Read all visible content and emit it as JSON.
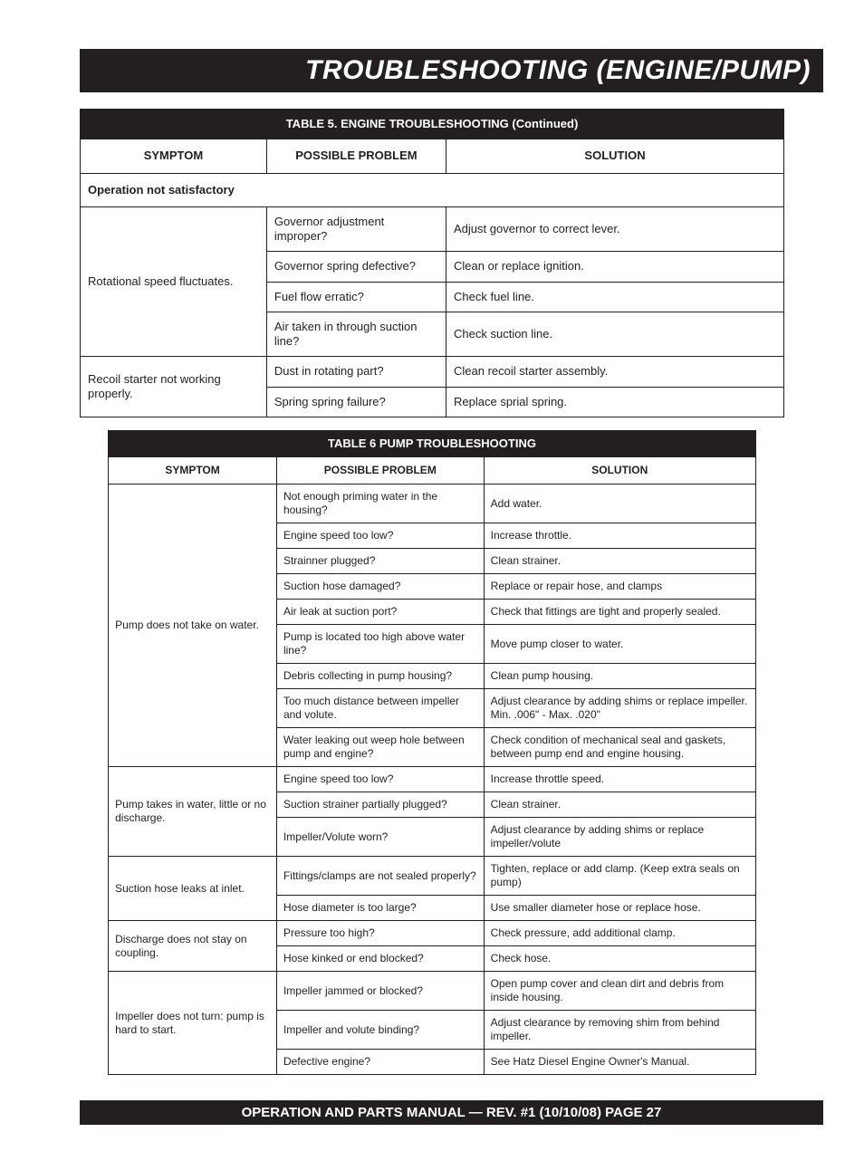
{
  "section_title": "TROUBLESHOOTING (ENGINE/PUMP)",
  "footer": "OPERATION AND PARTS MANUAL — REV. #1 (10/10/08) PAGE 27",
  "table5": {
    "title": "TABLE 5.  ENGINE TROUBLESHOOTING (Continued)",
    "headers": {
      "symptom": "SYMPTOM",
      "problem": "POSSIBLE PROBLEM",
      "solution": "SOLUTION"
    },
    "subheading": "Operation not satisfactory",
    "groups": [
      {
        "symptom": "Rotational speed fluctuates.",
        "rows": [
          {
            "problem": "Governor adjustment improper?",
            "solution": "Adjust governor to correct lever."
          },
          {
            "problem": "Governor spring defective?",
            "solution": "Clean or replace ignition."
          },
          {
            "problem": "Fuel flow erratic?",
            "solution": "Check fuel line."
          },
          {
            "problem": "Air taken in through suction line?",
            "solution": "Check suction line."
          }
        ]
      },
      {
        "symptom": "Recoil starter not working properly.",
        "rows": [
          {
            "problem": "Dust in rotating part?",
            "solution": "Clean recoil starter assembly."
          },
          {
            "problem": "Spring spring failure?",
            "solution": "Replace sprial spring."
          }
        ]
      }
    ]
  },
  "table6": {
    "title": "TABLE 6 PUMP TROUBLESHOOTING",
    "headers": {
      "symptom": "SYMPTOM",
      "problem": "POSSIBLE PROBLEM",
      "solution": "SOLUTION"
    },
    "groups": [
      {
        "symptom": "Pump does not take on water.",
        "rows": [
          {
            "problem": "Not enough priming water in the housing?",
            "solution": "Add water."
          },
          {
            "problem": "Engine speed too low?",
            "solution": "Increase throttle."
          },
          {
            "problem": "Strainner plugged?",
            "solution": "Clean strainer."
          },
          {
            "problem": "Suction hose damaged?",
            "solution": "Replace or repair hose, and clamps"
          },
          {
            "problem": "Air leak at suction port?",
            "solution": "Check that fittings are tight and properly sealed."
          },
          {
            "problem": "Pump is located too high above water line?",
            "solution": "Move pump closer to water."
          },
          {
            "problem": "Debris collecting in pump housing?",
            "solution": "Clean pump housing."
          },
          {
            "problem": "Too much distance between impeller and volute.",
            "solution": "Adjust clearance by adding shims or replace impeller. Min. .006\" - Max. .020\""
          },
          {
            "problem": "Water leaking out weep hole between pump and engine?",
            "solution": "Check condition of mechanical seal and gaskets, between pump end and engine housing."
          }
        ]
      },
      {
        "symptom": "Pump takes in water, little or no discharge.",
        "rows": [
          {
            "problem": "Engine speed too low?",
            "solution": "Increase throttle speed."
          },
          {
            "problem": "Suction strainer partially plugged?",
            "solution": "Clean strainer."
          },
          {
            "problem": "Impeller/Volute worn?",
            "solution": "Adjust clearance by adding shims or replace impeller/volute"
          }
        ]
      },
      {
        "symptom": "Suction hose leaks at inlet.",
        "rows": [
          {
            "problem": "Fittings/clamps are not sealed properly?",
            "solution": "Tighten, replace or add clamp. (Keep extra seals on pump)"
          },
          {
            "problem": "Hose diameter is too large?",
            "solution": "Use smaller diameter hose or replace hose."
          }
        ]
      },
      {
        "symptom": "Discharge does not stay on coupling.",
        "rows": [
          {
            "problem": "Pressure too high?",
            "solution": "Check pressure, add additional clamp."
          },
          {
            "problem": "Hose kinked or end blocked?",
            "solution": "Check hose."
          }
        ]
      },
      {
        "symptom": "Impeller does not turn: pump is hard to start.",
        "rows": [
          {
            "problem": "Impeller jammed or blocked?",
            "solution": "Open pump cover and clean dirt and debris from inside housing."
          },
          {
            "problem": "Impeller and volute binding?",
            "solution": "Adjust clearance by removing shim from behind impeller."
          },
          {
            "problem": "Defective engine?",
            "solution": "See Hatz Diesel Engine Owner's Manual."
          }
        ]
      }
    ]
  }
}
